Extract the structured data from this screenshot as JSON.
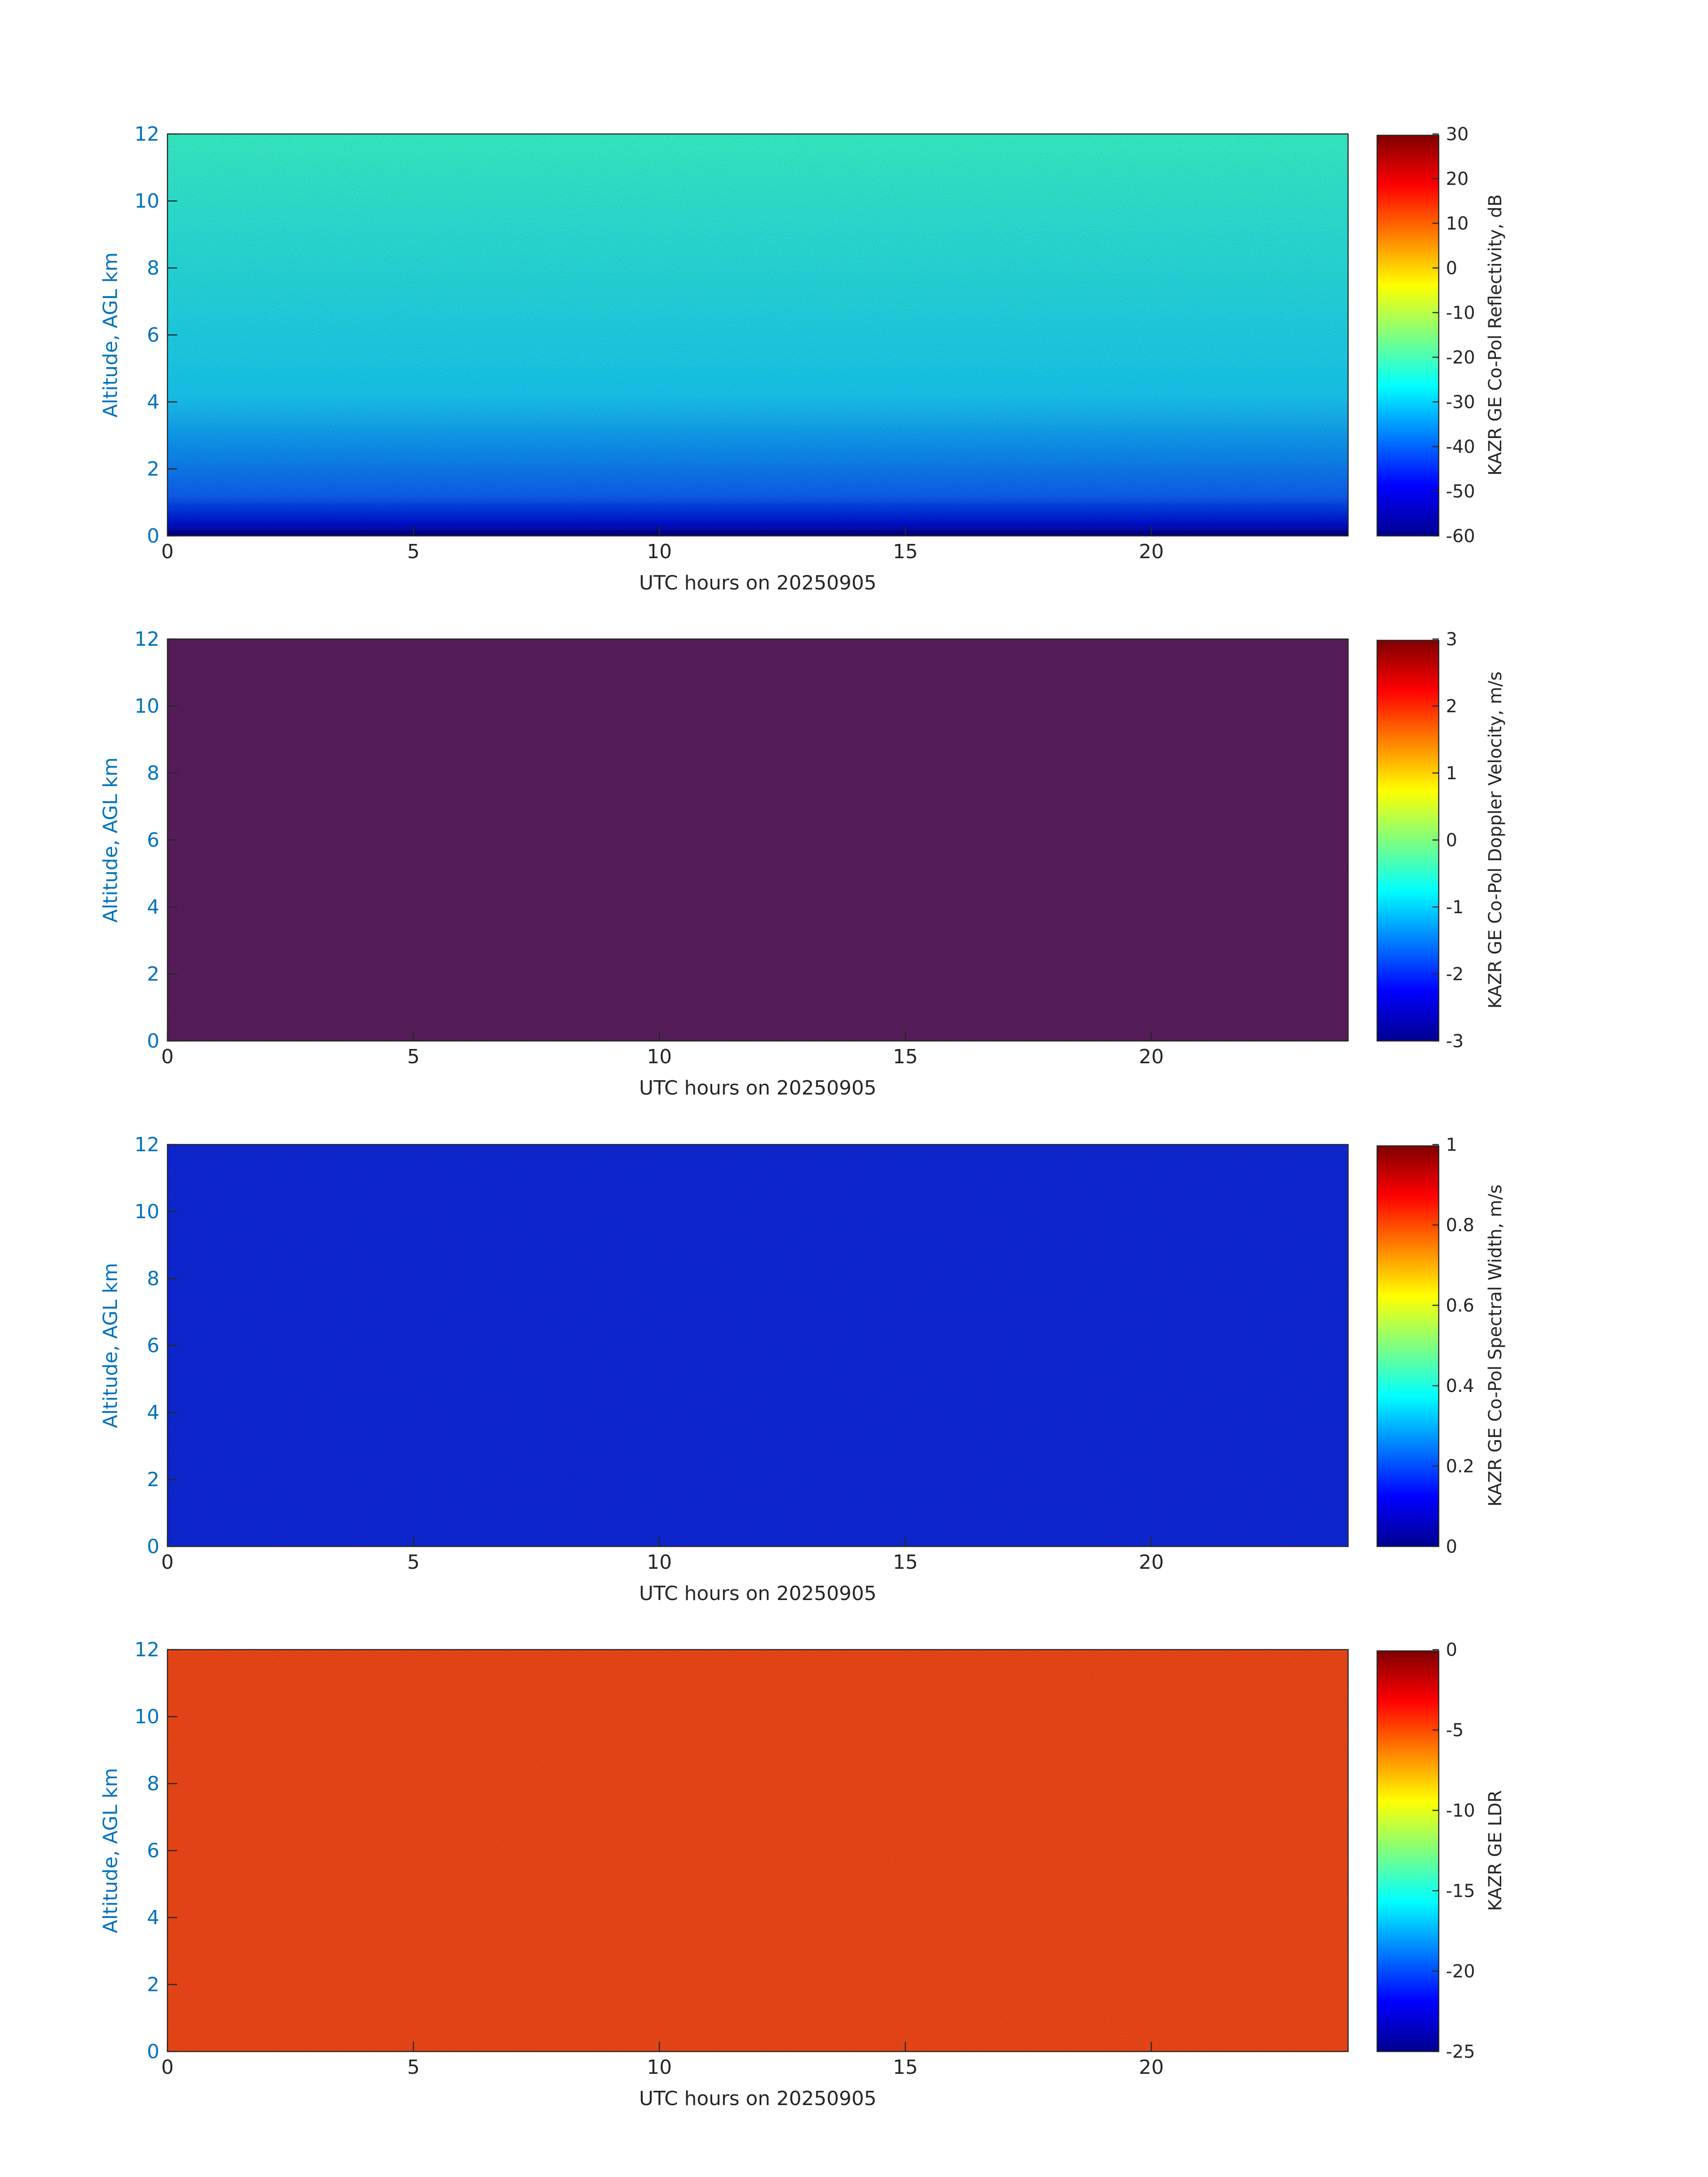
{
  "chart_data": [
    {
      "type": "heatmap",
      "xlabel": "UTC hours on 20250905",
      "ylabel": "Altitude, AGL km",
      "colorbar_label": "KAZR GE Co-Pol Reflectivity, dB",
      "colormap": "jet",
      "xlim": [
        0,
        24
      ],
      "xticks": [
        0,
        5,
        10,
        15,
        20
      ],
      "ylim": [
        0,
        12
      ],
      "yticks": [
        0,
        2,
        4,
        6,
        8,
        10,
        12
      ],
      "clim": [
        -60,
        30
      ],
      "cticks": [
        -60,
        -50,
        -40,
        -30,
        -20,
        -10,
        0,
        10,
        20,
        30
      ]
    },
    {
      "type": "heatmap",
      "xlabel": "UTC hours on 20250905",
      "ylabel": "Altitude, AGL km",
      "colorbar_label": "KAZR GE Co-Pol Doppler Velocity, m/s",
      "colormap": "jet",
      "xlim": [
        0,
        24
      ],
      "xticks": [
        0,
        5,
        10,
        15,
        20
      ],
      "ylim": [
        0,
        12
      ],
      "yticks": [
        0,
        2,
        4,
        6,
        8,
        10,
        12
      ],
      "clim": [
        -3,
        3
      ],
      "cticks": [
        -3,
        -2,
        -1,
        0,
        1,
        2,
        3
      ]
    },
    {
      "type": "heatmap",
      "xlabel": "UTC hours on 20250905",
      "ylabel": "Altitude, AGL km",
      "colorbar_label": "KAZR GE Co-Pol Spectral Width, m/s",
      "colormap": "jet",
      "xlim": [
        0,
        24
      ],
      "xticks": [
        0,
        5,
        10,
        15,
        20
      ],
      "ylim": [
        0,
        12
      ],
      "yticks": [
        0,
        2,
        4,
        6,
        8,
        10,
        12
      ],
      "clim": [
        0,
        1
      ],
      "cticks": [
        0,
        0.2,
        0.4,
        0.6,
        0.8,
        1
      ]
    },
    {
      "type": "heatmap",
      "xlabel": "UTC hours on 20250905",
      "ylabel": "Altitude, AGL km",
      "colorbar_label": "KAZR GE LDR",
      "colormap": "jet",
      "xlim": [
        0,
        24
      ],
      "xticks": [
        0,
        5,
        10,
        15,
        20
      ],
      "ylim": [
        0,
        12
      ],
      "yticks": [
        0,
        2,
        4,
        6,
        8,
        10,
        12
      ],
      "clim": [
        -25,
        0
      ],
      "cticks": [
        -25,
        -20,
        -15,
        -10,
        -5,
        0
      ]
    }
  ]
}
